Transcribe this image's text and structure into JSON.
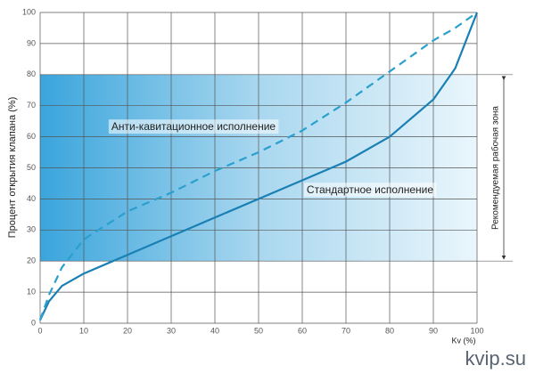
{
  "chart_data": {
    "type": "line",
    "y_label": "Процент открытия клапана (%)",
    "x_label": "Kv (%)",
    "x": [
      0,
      2,
      5,
      10,
      20,
      30,
      40,
      50,
      60,
      70,
      80,
      90,
      95,
      100
    ],
    "series": [
      {
        "name": "Стандартное исполнение",
        "color": "#1a80b4",
        "dashed": false,
        "values": [
          1,
          7,
          12,
          16,
          22,
          28,
          34,
          40,
          46,
          52,
          60,
          72,
          82,
          100
        ]
      },
      {
        "name": "Анти-кавитационное исполнение",
        "color": "#2aa0cc",
        "dashed": true,
        "values": [
          1,
          9,
          18,
          27,
          36,
          42,
          49,
          55,
          62,
          71,
          81,
          91,
          95,
          100
        ]
      }
    ],
    "xlim": [
      0,
      100
    ],
    "ylim": [
      0,
      100
    ],
    "xticks": [
      0,
      10,
      20,
      30,
      40,
      50,
      60,
      70,
      80,
      90,
      100
    ],
    "yticks": [
      0,
      10,
      20,
      30,
      40,
      50,
      60,
      70,
      80,
      90,
      100
    ],
    "grid": true,
    "band": [
      20,
      80
    ],
    "band_label": "Рекомендуемая рабочая зона",
    "watermark": "kvip.su"
  }
}
